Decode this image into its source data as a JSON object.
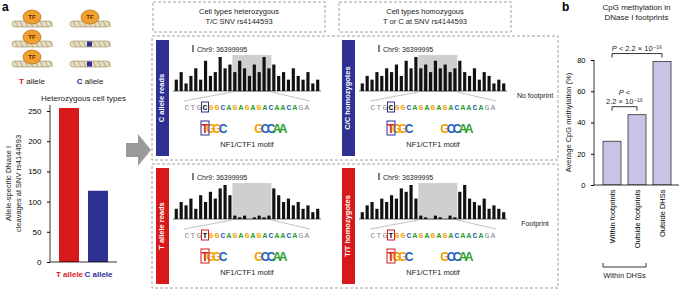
{
  "panel_labels": [
    "a",
    "b"
  ],
  "chart_data": [
    {
      "type": "bar",
      "title": "Heterozygous cell types",
      "y_label": [
        "Allele-specific DNase I",
        "cleavages at SNV rs4144593"
      ],
      "categories": [
        "T allele",
        "C allele"
      ],
      "values": [
        255,
        118
      ],
      "colors": [
        "#d7191c",
        "#2e3192"
      ],
      "ylim": [
        0,
        260
      ],
      "yticks": [
        0,
        50,
        100,
        150,
        200,
        250
      ]
    },
    {
      "type": "bar",
      "title": [
        "CpG methylation in",
        "DNase I footprints"
      ],
      "y_label": "Average CpG methylation (%)",
      "categories": [
        "Within footprints",
        "Outside footprints",
        "Outside DHSs"
      ],
      "values": [
        28,
        45,
        79
      ],
      "color": "#c9c3e6",
      "ylim": [
        0,
        80
      ],
      "yticks": [
        0,
        20,
        40,
        60,
        80
      ],
      "comparisons": [
        {
          "between": [
            "Within footprints",
            "Outside footprints"
          ],
          "label": "P < 2.2 × 10⁻¹⁶"
        },
        {
          "between": [
            "Within footprints",
            "Outside DHSs"
          ],
          "label": "P < 2.2 × 10⁻¹⁶"
        }
      ],
      "group": {
        "label": "Within DHSs",
        "members": [
          "Within footprints",
          "Outside footprints"
        ]
      }
    }
  ],
  "schematic": {
    "tf_label": "TF",
    "alleles": [
      {
        "label": "T allele",
        "color": "#d7191c",
        "bound": [
          true,
          true,
          true
        ]
      },
      {
        "label": "C allele",
        "color": "#2e3192",
        "bound": [
          true,
          false,
          false
        ]
      }
    ]
  },
  "footprint_panels": {
    "columns": [
      {
        "header": [
          "Cell types heterozygous",
          "T/C SNV rs4144593"
        ]
      },
      {
        "header": [
          "Cell types homozygous",
          "T or C at SNV rs4144593"
        ]
      }
    ],
    "rows": [
      {
        "label": "No footprint",
        "allele": "C",
        "color": "#2e3192",
        "panels": [
          {
            "label": "C allele reads",
            "signal": [
              0.3,
              0.5,
              0.2,
              0.4,
              0.6,
              0.3,
              0.8,
              0.4,
              0.5,
              0.9,
              0.6,
              0.7,
              0.5,
              0.8,
              0.6,
              0.4,
              0.7,
              0.5,
              0.9,
              0.6,
              0.7,
              0.4,
              0.5,
              0.3,
              0.6,
              0.4,
              0.3,
              0.5,
              0.2,
              0.3
            ]
          },
          {
            "label": "C/C homozygotes",
            "signal": [
              0.2,
              0.4,
              0.3,
              0.5,
              0.4,
              0.6,
              0.5,
              0.7,
              0.4,
              0.8,
              0.6,
              0.9,
              0.6,
              0.7,
              0.5,
              0.8,
              0.6,
              0.7,
              0.5,
              0.6,
              0.8,
              0.5,
              0.4,
              0.6,
              0.3,
              0.5,
              0.4,
              0.2,
              0.3,
              0.2
            ]
          }
        ]
      },
      {
        "label": "Footprint",
        "allele": "T",
        "color": "#d7191c",
        "panels": [
          {
            "label": "T allele reads",
            "signal": [
              0.3,
              0.5,
              0.4,
              0.6,
              0.3,
              0.7,
              0.5,
              0.8,
              0.6,
              0.9,
              1.0,
              0.7,
              0.1,
              0.05,
              0.1,
              0,
              0.05,
              0.1,
              0.05,
              0.1,
              0.9,
              0.7,
              0.5,
              0.6,
              0.4,
              0.5,
              0.3,
              0.4,
              0.2,
              0.3
            ]
          },
          {
            "label": "T/T homozygotes",
            "signal": [
              0.2,
              0.4,
              0.5,
              0.3,
              0.6,
              0.5,
              0.7,
              0.6,
              0.9,
              0.8,
              1.0,
              0.6,
              0.1,
              0.05,
              0,
              0.1,
              0.05,
              0,
              0.1,
              0.05,
              0.8,
              1.0,
              0.6,
              0.5,
              0.4,
              0.6,
              0.3,
              0.4,
              0.3,
              0.2
            ]
          }
        ]
      }
    ],
    "locus": "Chr9: 36399995",
    "shaded": [
      12,
      19
    ],
    "sequence": {
      "prefix": "CTG",
      "core": "GGCAGAGAGACAACA",
      "suffix": "GA"
    },
    "logo": [
      "TGGC",
      "GCCAA"
    ],
    "motif_label": "NF1/CTF1 motif"
  }
}
